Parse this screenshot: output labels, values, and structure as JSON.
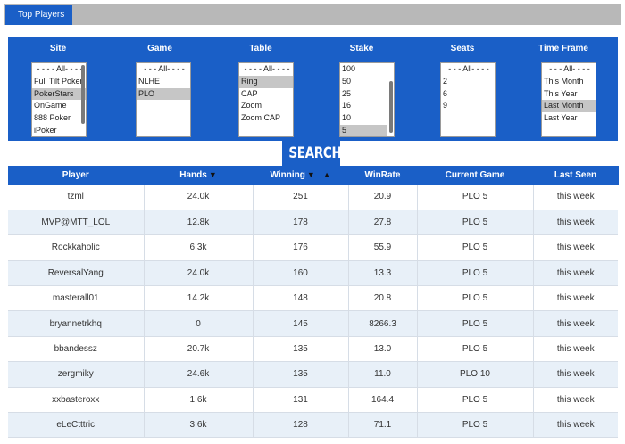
{
  "header": {
    "tab_title": "Top Players"
  },
  "filters": [
    {
      "id": "site",
      "label": "Site",
      "options": [
        "- - - - All- - - -",
        "Full Tilt Poker",
        "PokerStars",
        "OnGame",
        "888 Poker",
        "iPoker"
      ],
      "selected": [
        "PokerStars"
      ],
      "scrollbar": true
    },
    {
      "id": "game",
      "label": "Game",
      "options": [
        "- - - All- - - -",
        "NLHE",
        "PLO"
      ],
      "selected": [
        "PLO"
      ],
      "scrollbar": false
    },
    {
      "id": "table",
      "label": "Table",
      "options": [
        "- - - - All- - - -",
        "Ring",
        "CAP",
        "Zoom",
        "Zoom CAP"
      ],
      "selected": [
        "Ring"
      ],
      "scrollbar": false
    },
    {
      "id": "stake",
      "label": "Stake",
      "options": [
        "100",
        "50",
        "25",
        "16",
        "10",
        "5"
      ],
      "selected": [
        "5"
      ],
      "scrollbar": true
    },
    {
      "id": "seats",
      "label": "Seats",
      "options": [
        "- - - All- - - -",
        "2",
        "6",
        "9"
      ],
      "selected": [],
      "scrollbar": false
    },
    {
      "id": "time_frame",
      "label": "Time Frame",
      "options": [
        "- - - All- - - -",
        "This Month",
        "This Year",
        "Last Month",
        "Last Year"
      ],
      "selected": [
        "Last Month"
      ],
      "scrollbar": false
    }
  ],
  "search": {
    "label": "SEARCH"
  },
  "table": {
    "columns": [
      "Player",
      "Hands",
      "Winning",
      "WinRate",
      "Current Game",
      "Last Seen"
    ],
    "sort_icons": {
      "hands": "▼",
      "winning_desc": "▼",
      "winning_asc": "▲"
    },
    "rows": [
      {
        "player": "tzml",
        "hands": "24.0k",
        "winning": "251",
        "winrate": "20.9",
        "game": "PLO 5",
        "last_seen": "this week"
      },
      {
        "player": "MVP@MTT_LOL",
        "hands": "12.8k",
        "winning": "178",
        "winrate": "27.8",
        "game": "PLO 5",
        "last_seen": "this week"
      },
      {
        "player": "Rockkaholic",
        "hands": "6.3k",
        "winning": "176",
        "winrate": "55.9",
        "game": "PLO 5",
        "last_seen": "this week"
      },
      {
        "player": "ReversalYang",
        "hands": "24.0k",
        "winning": "160",
        "winrate": "13.3",
        "game": "PLO 5",
        "last_seen": "this week"
      },
      {
        "player": "masterall01",
        "hands": "14.2k",
        "winning": "148",
        "winrate": "20.8",
        "game": "PLO 5",
        "last_seen": "this week"
      },
      {
        "player": "bryannetrkhq",
        "hands": "0",
        "winning": "145",
        "winrate": "8266.3",
        "game": "PLO 5",
        "last_seen": "this week"
      },
      {
        "player": "bbandessz",
        "hands": "20.7k",
        "winning": "135",
        "winrate": "13.0",
        "game": "PLO 5",
        "last_seen": "this week"
      },
      {
        "player": "zergmiky",
        "hands": "24.6k",
        "winning": "135",
        "winrate": "11.0",
        "game": "PLO 10",
        "last_seen": "this week"
      },
      {
        "player": "xxbasteroxx",
        "hands": "1.6k",
        "winning": "131",
        "winrate": "164.4",
        "game": "PLO 5",
        "last_seen": "this week"
      },
      {
        "player": "eLeCtttric",
        "hands": "3.6k",
        "winning": "128",
        "winrate": "71.1",
        "game": "PLO 5",
        "last_seen": "this week"
      }
    ]
  }
}
